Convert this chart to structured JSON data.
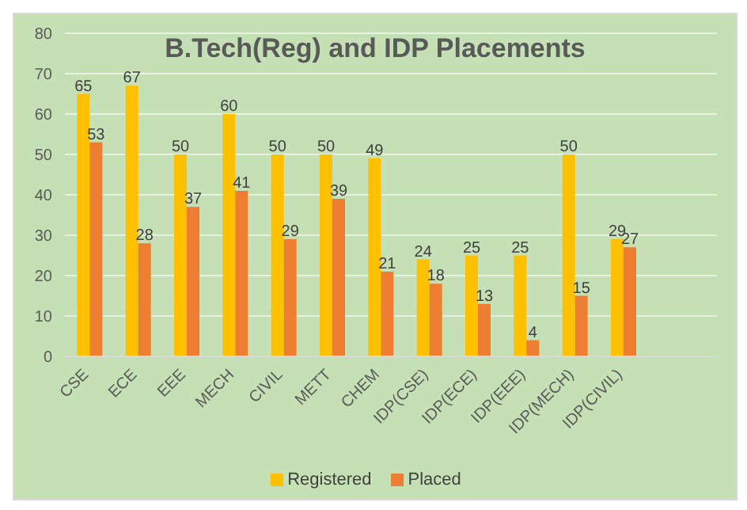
{
  "chart_data": {
    "type": "bar",
    "title": "B.Tech(Reg) and IDP Placements",
    "categories": [
      "CSE",
      "ECE",
      "EEE",
      "MECH",
      "CIVIL",
      "METT",
      "CHEM",
      "IDP(CSE)",
      "IDP(ECE)",
      "IDP(EEE)",
      "IDP(MECH)",
      "IDP(CIVIL)"
    ],
    "series": [
      {
        "name": "Registered",
        "color": "#ffc000",
        "values": [
          65,
          67,
          50,
          60,
          50,
          50,
          49,
          24,
          25,
          25,
          50,
          29
        ]
      },
      {
        "name": "Placed",
        "color": "#ed7d31",
        "values": [
          53,
          28,
          37,
          41,
          29,
          39,
          21,
          18,
          13,
          4,
          15,
          27
        ]
      }
    ],
    "ylim": [
      0,
      80
    ],
    "yticks": [
      0,
      10,
      20,
      30,
      40,
      50,
      60,
      70,
      80
    ],
    "grid": "y",
    "legend": "bottom",
    "data_labels": true
  }
}
